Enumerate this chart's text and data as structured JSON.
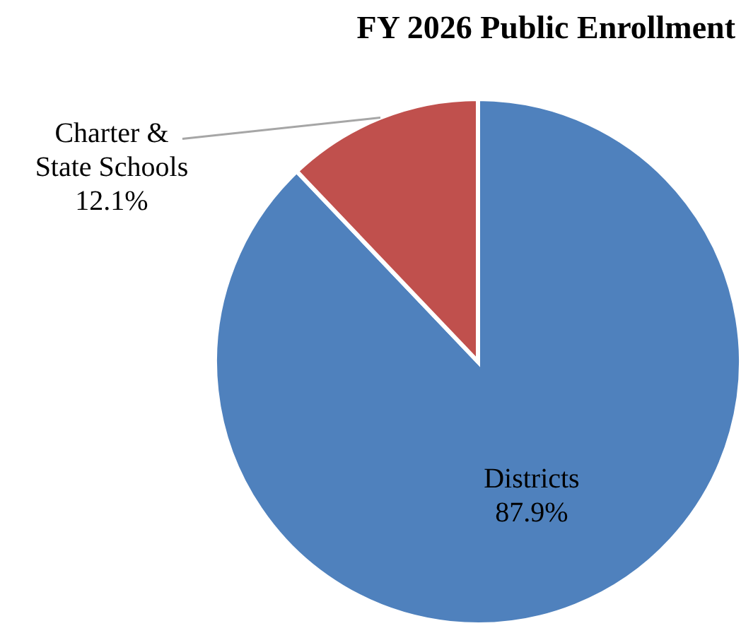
{
  "chart_data": {
    "type": "pie",
    "title": "FY 2026 Public Enrollment",
    "categories": [
      "Districts",
      "Charter &\nState Schools"
    ],
    "values": [
      87.9,
      12.1
    ],
    "colors": [
      "#4f81bd",
      "#c0504d"
    ],
    "value_labels": [
      "87.9%",
      "12.1%"
    ]
  }
}
